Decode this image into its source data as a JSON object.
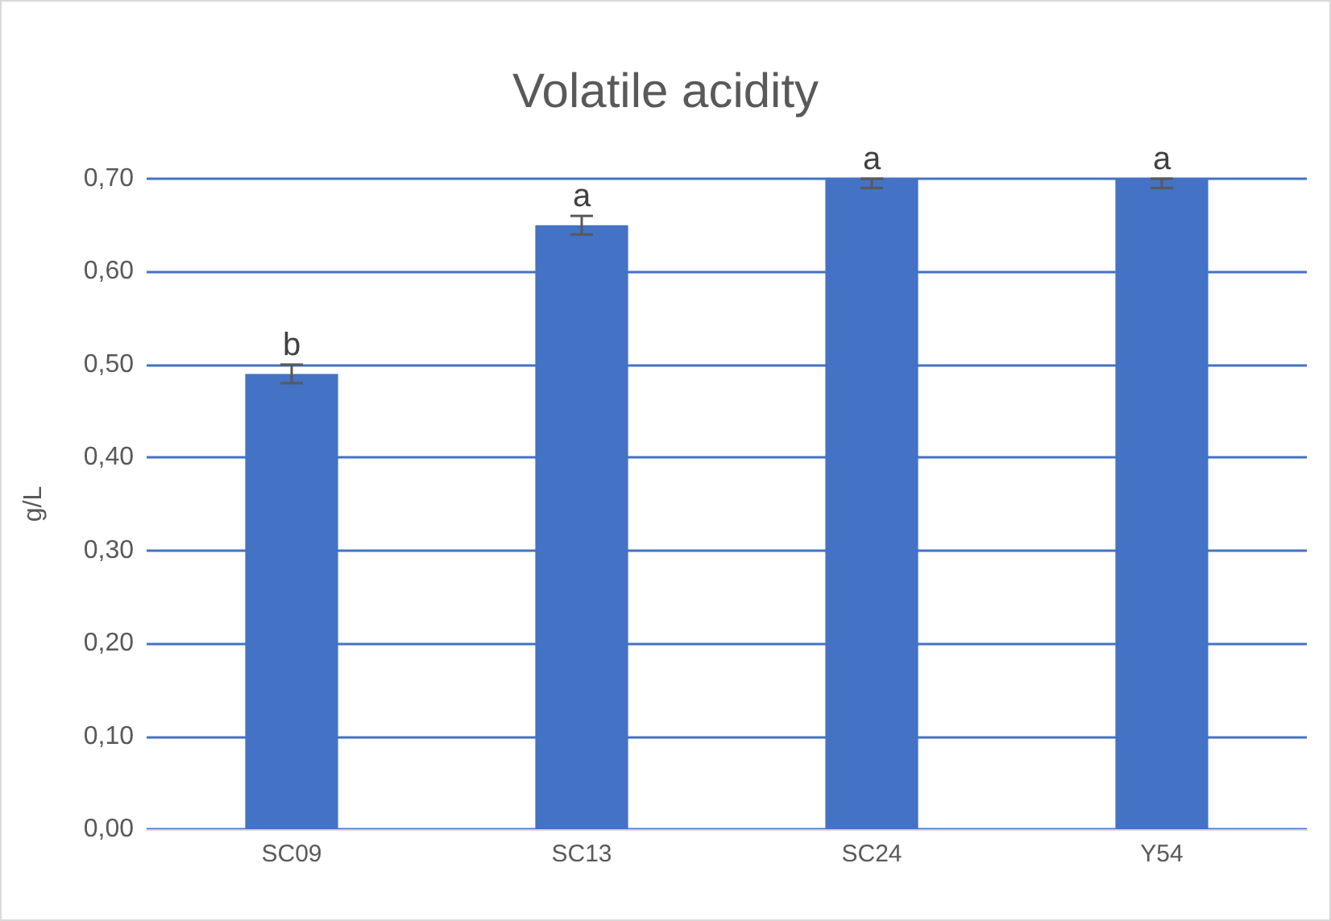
{
  "chart_data": {
    "type": "bar",
    "title": "Volatile acidity",
    "ylabel": "g/L",
    "categories": [
      "SC09",
      "SC13",
      "SC24",
      "Y54"
    ],
    "values": [
      0.49,
      0.65,
      0.7,
      0.7
    ],
    "errors": [
      0.01,
      0.01,
      [
        0.69,
        0.7
      ],
      [
        0.69,
        0.7
      ]
    ],
    "color": "#4472c4",
    "ylim": [
      0,
      0.7
    ],
    "yticks": [
      {
        "value": 0,
        "label": "0,00"
      },
      {
        "value": 0.1,
        "label": "0,10"
      },
      {
        "value": 0.2,
        "label": "0,20"
      },
      {
        "value": 0.3,
        "label": "0,30"
      },
      {
        "value": 0.4,
        "label": "0,40"
      },
      {
        "value": 0.5,
        "label": "0,50"
      },
      {
        "value": 0.6,
        "label": "0,60"
      },
      {
        "value": 0.7,
        "label": "0,70"
      }
    ],
    "grid": "y",
    "annotations": [
      {
        "text": "b",
        "x": "SC09",
        "y": 0.5
      },
      {
        "text": "a",
        "x": "SC13",
        "y": 0.66
      },
      {
        "text": "a",
        "x": "SC24",
        "y": 0.7
      },
      {
        "text": "a",
        "x": "Y54",
        "y": 0.7
      }
    ]
  }
}
